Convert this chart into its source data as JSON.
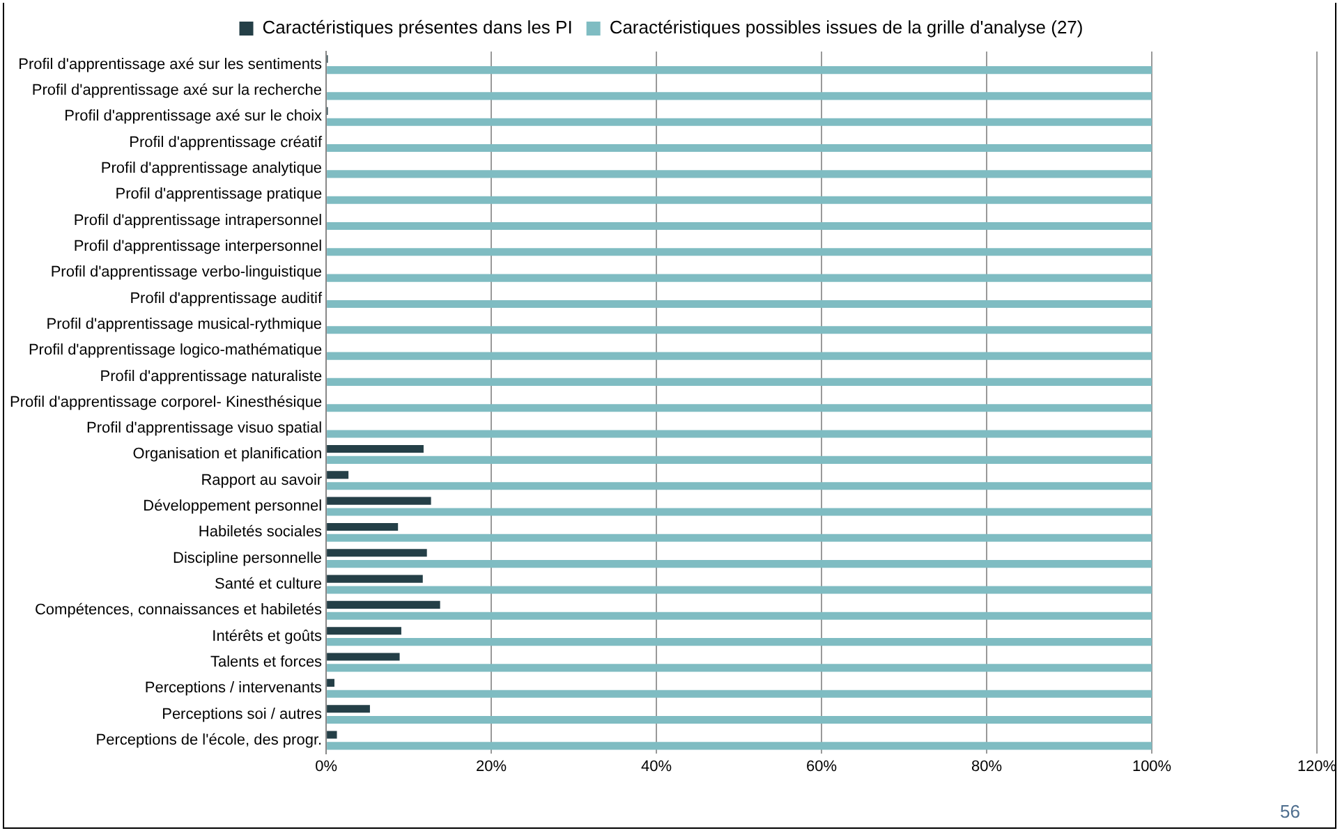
{
  "chart_data": {
    "type": "bar",
    "orientation": "horizontal",
    "categories": [
      "Profil d'apprentissage axé sur les sentiments",
      "Profil d'apprentissage axé sur la recherche",
      "Profil d'apprentissage axé sur le choix",
      "Profil d'apprentissage créatif",
      "Profil d'apprentissage analytique",
      "Profil d'apprentissage pratique",
      "Profil d'apprentissage intrapersonnel",
      "Profil d'apprentissage interpersonnel",
      "Profil d'apprentissage verbo-linguistique",
      "Profil d'apprentissage auditif",
      "Profil d'apprentissage musical-rythmique",
      "Profil d'apprentissage logico-mathématique",
      "Profil d'apprentissage naturaliste",
      "Profil d'apprentissage corporel- Kinesthésique",
      "Profil d'apprentissage visuo spatial",
      "Organisation et planification",
      "Rapport au savoir",
      "Développement personnel",
      "Habiletés sociales",
      "Discipline personnelle",
      "Santé et culture",
      "Compétences, connaissances et habiletés",
      "Intérêts et goûts",
      "Talents et forces",
      "Perceptions / intervenants",
      "Perceptions soi / autres",
      "Perceptions de l'école, des progr."
    ],
    "series": [
      {
        "name": "Caractéristiques présentes dans les PI",
        "color": "#243f47",
        "values": [
          0.2,
          0,
          0.2,
          0,
          0,
          0,
          0,
          0,
          0,
          0,
          0,
          0,
          0,
          0,
          0,
          11.8,
          2.7,
          12.7,
          8.7,
          12.2,
          11.7,
          13.8,
          9.1,
          8.9,
          1.0,
          5.3,
          1.3
        ]
      },
      {
        "name": "Caractéristiques possibles issues de la grille d'analyse (27)",
        "color": "#7fbcc2",
        "values": [
          100,
          100,
          100,
          100,
          100,
          100,
          100,
          100,
          100,
          100,
          100,
          100,
          100,
          100,
          100,
          100,
          100,
          100,
          100,
          100,
          100,
          100,
          100,
          100,
          100,
          100,
          100
        ]
      }
    ],
    "xlim": [
      0,
      120
    ],
    "xticks": [
      {
        "value": 0,
        "label": "0%"
      },
      {
        "value": 20,
        "label": "20%"
      },
      {
        "value": 40,
        "label": "40%"
      },
      {
        "value": 60,
        "label": "60%"
      },
      {
        "value": 80,
        "label": "80%"
      },
      {
        "value": 100,
        "label": "100%"
      },
      {
        "value": 120,
        "label": "120%"
      }
    ],
    "grid": "x",
    "legend": "top",
    "annotations": [
      "56"
    ]
  }
}
